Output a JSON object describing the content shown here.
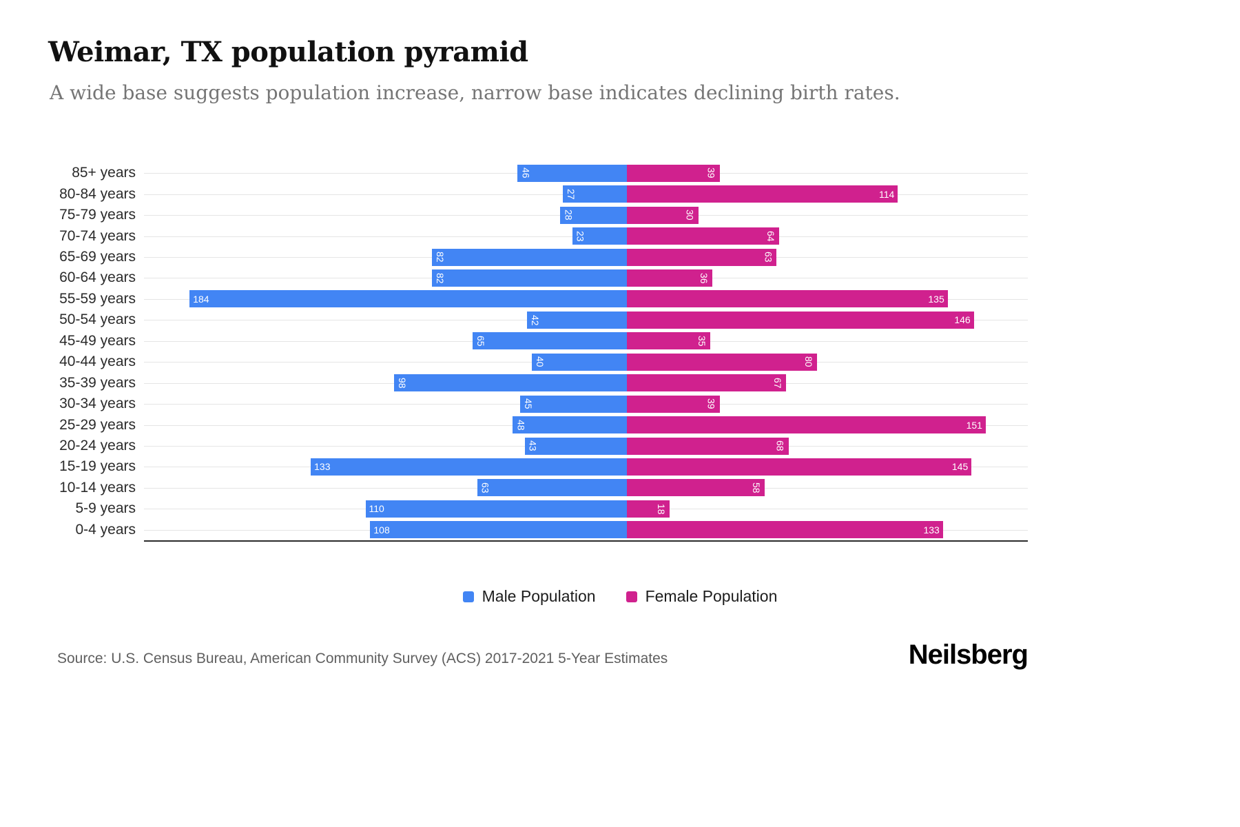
{
  "header": {
    "title": "Weimar, TX population pyramid",
    "subtitle": "A wide base suggests population increase, narrow base indicates declining birth rates."
  },
  "chart_data": {
    "type": "bar",
    "variant": "population-pyramid",
    "title": "Weimar, TX population pyramid",
    "categories": [
      "85+ years",
      "80-84 years",
      "75-79 years",
      "70-74 years",
      "65-69 years",
      "60-64 years",
      "55-59 years",
      "50-54 years",
      "45-49 years",
      "40-44 years",
      "35-39 years",
      "30-34 years",
      "25-29 years",
      "20-24 years",
      "15-19 years",
      "10-14 years",
      "5-9 years",
      "0-4 years"
    ],
    "series": [
      {
        "name": "Male Population",
        "side": "left",
        "color": "#4285F4",
        "values": [
          46,
          27,
          28,
          23,
          82,
          82,
          184,
          42,
          65,
          40,
          98,
          45,
          48,
          43,
          133,
          63,
          110,
          108
        ]
      },
      {
        "name": "Female Population",
        "side": "right",
        "color": "#D0218E",
        "values": [
          39,
          114,
          30,
          64,
          63,
          36,
          135,
          146,
          35,
          80,
          67,
          39,
          151,
          68,
          145,
          58,
          18,
          133
        ]
      }
    ],
    "value_axis_max_each_side": 200,
    "grid": "horizontal-per-category",
    "legend_position": "bottom"
  },
  "footer": {
    "source": "Source: U.S. Census Bureau, American Community Survey (ACS) 2017-2021 5-Year Estimates",
    "brand": "Neilsberg"
  }
}
